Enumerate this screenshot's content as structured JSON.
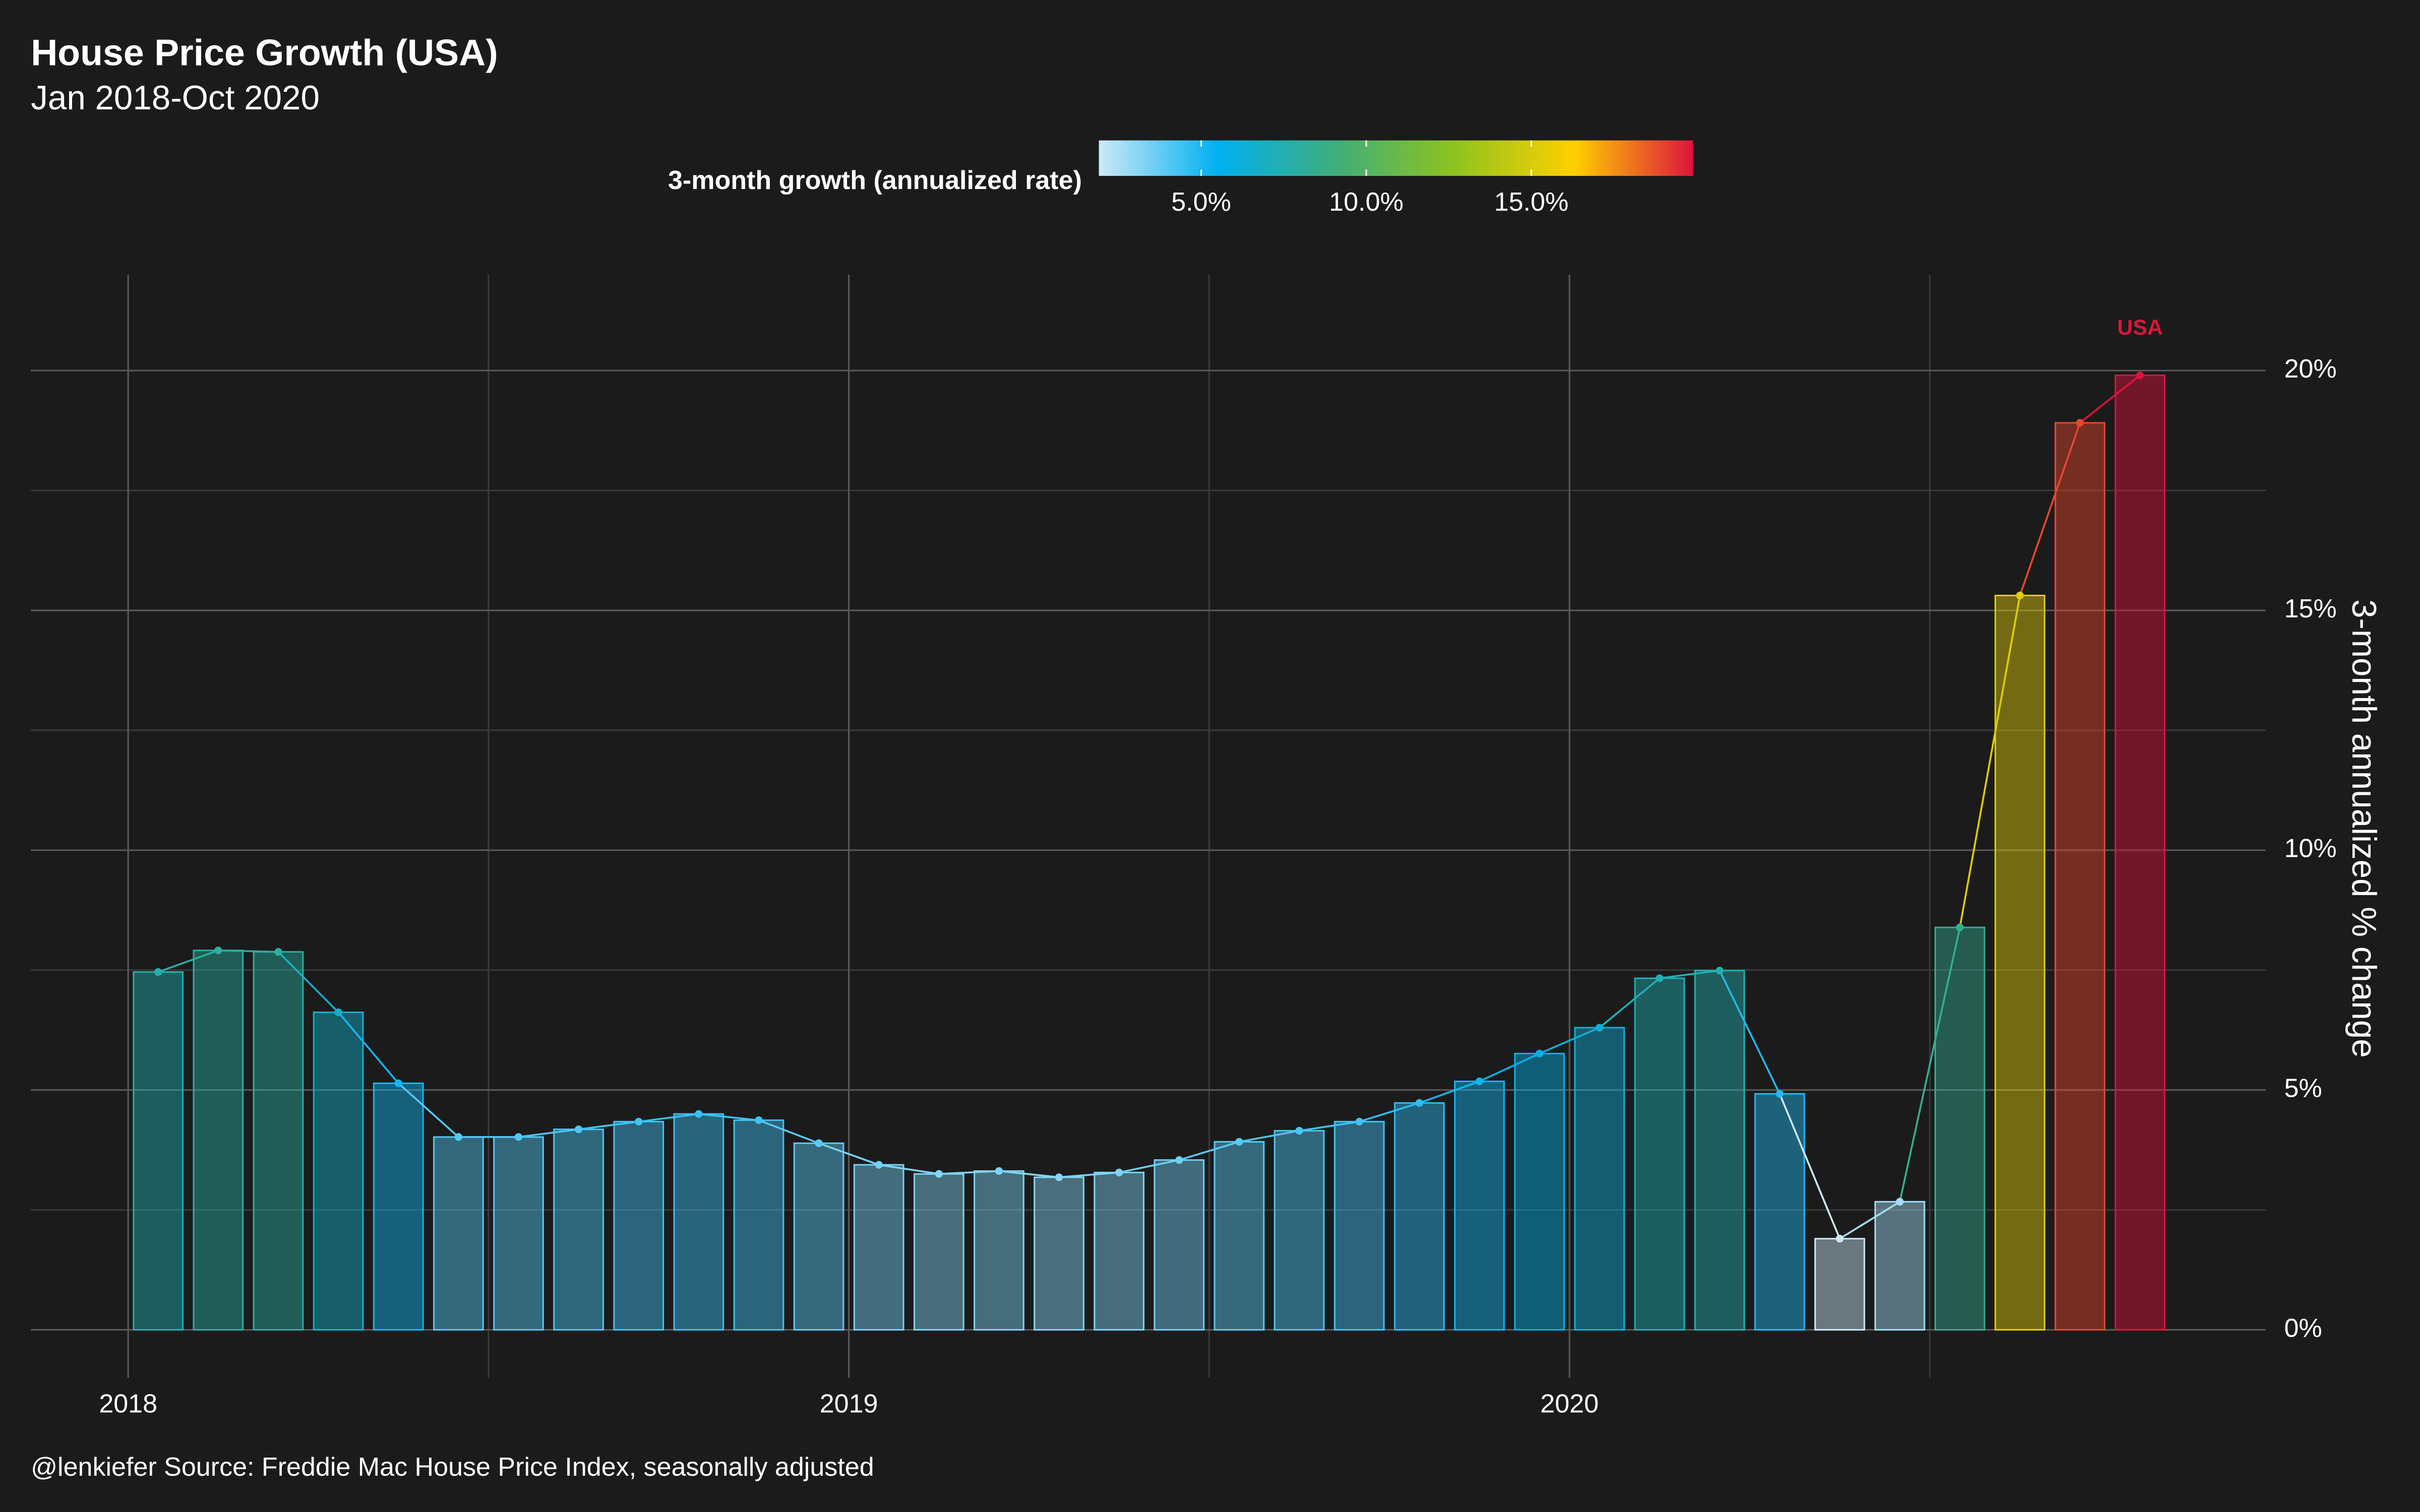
{
  "chart_data": {
    "type": "bar",
    "title": "House Price Growth (USA)",
    "subtitle": "Jan 2018-Oct 2020",
    "y_label": "3-month annualized % change",
    "caption": "@lenkiefer Source: Freddie Mac House Price Index, seasonally adjusted",
    "legend_title": "3-month growth (annualized rate)",
    "annotation": "USA",
    "annotation_color": "#dc143c",
    "x": [
      "2018-01",
      "2018-02",
      "2018-03",
      "2018-04",
      "2018-05",
      "2018-06",
      "2018-07",
      "2018-08",
      "2018-09",
      "2018-10",
      "2018-11",
      "2018-12",
      "2019-01",
      "2019-02",
      "2019-03",
      "2019-04",
      "2019-05",
      "2019-06",
      "2019-07",
      "2019-08",
      "2019-09",
      "2019-10",
      "2019-11",
      "2019-12",
      "2020-01",
      "2020-02",
      "2020-03",
      "2020-04",
      "2020-05",
      "2020-06",
      "2020-07",
      "2020-08",
      "2020-09",
      "2020-10"
    ],
    "values": [
      7.46,
      7.91,
      7.88,
      6.62,
      5.14,
      4.02,
      4.02,
      4.18,
      4.34,
      4.5,
      4.37,
      3.89,
      3.44,
      3.25,
      3.31,
      3.18,
      3.28,
      3.54,
      3.92,
      4.15,
      4.34,
      4.73,
      5.18,
      5.76,
      6.3,
      7.33,
      7.49,
      4.92,
      1.9,
      2.67,
      8.39,
      15.31,
      18.91,
      19.9
    ],
    "colorscale": [
      "#cde9f6",
      "#00b0f0",
      "#3fae7a",
      "#8fc31f",
      "#ffd000",
      "#dc143c"
    ],
    "xlim": [
      2017.865,
      2020.966
    ],
    "xticks": [
      2018,
      2019,
      2020
    ],
    "ylim": [
      -1,
      22
    ],
    "yticks": [
      {
        "value": 0,
        "label": "0%"
      },
      {
        "value": 5,
        "label": "5%"
      },
      {
        "value": 10,
        "label": "10%"
      },
      {
        "value": 15,
        "label": "15%"
      },
      {
        "value": 20,
        "label": "20%"
      }
    ],
    "legend_ticks": [
      {
        "value": 5,
        "label": "5.0%"
      },
      {
        "value": 10,
        "label": "10.0%"
      },
      {
        "value": 15,
        "label": "15.0%"
      }
    ],
    "grid": true
  }
}
